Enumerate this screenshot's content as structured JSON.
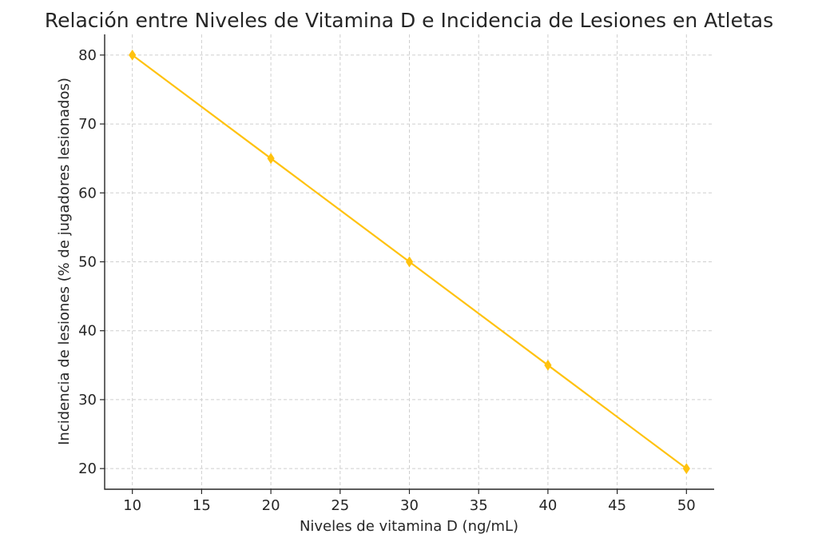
{
  "chart_data": {
    "type": "line",
    "title": "Relación entre Niveles de Vitamina D e Incidencia de Lesiones en Atletas",
    "xlabel": "Niveles de vitamina D (ng/mL)",
    "ylabel": "Incidencia de lesiones (% de jugadores lesionados)",
    "x": [
      10,
      20,
      30,
      40,
      50
    ],
    "series": [
      {
        "values": [
          80,
          65,
          50,
          35,
          20
        ],
        "color": "#FFC20E",
        "marker": "diamond"
      }
    ],
    "xlim": [
      8,
      52
    ],
    "ylim": [
      17,
      83
    ],
    "xticks": [
      10,
      15,
      20,
      25,
      30,
      35,
      40,
      45,
      50
    ],
    "yticks": [
      20,
      30,
      40,
      50,
      60,
      70,
      80
    ],
    "grid": true,
    "legend": false
  }
}
